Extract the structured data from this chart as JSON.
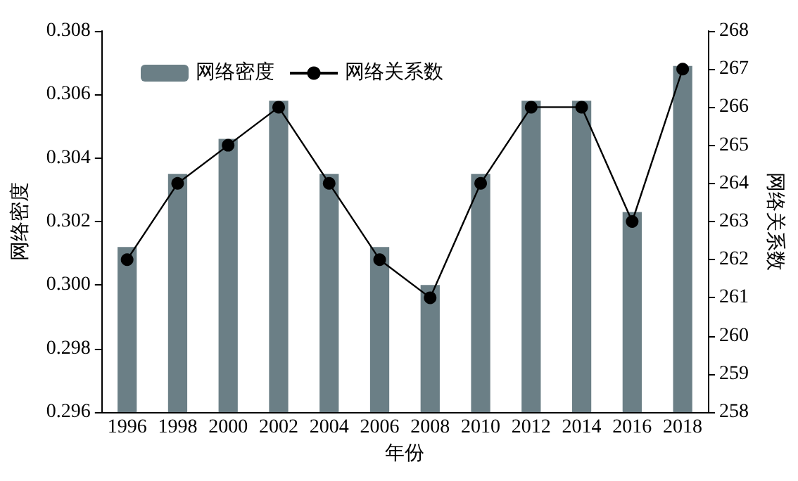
{
  "chart_data": {
    "type": "bar",
    "xlabel": "年份",
    "ylabel": "网络密度",
    "y2label": "网络关系数",
    "categories": [
      "1996",
      "1998",
      "2000",
      "2002",
      "2004",
      "2006",
      "2008",
      "2010",
      "2012",
      "2014",
      "2016",
      "2018"
    ],
    "series": [
      {
        "name": "网络密度",
        "color": "#6b7f86",
        "values": [
          0.3012,
          0.3035,
          0.3046,
          0.3058,
          0.3035,
          0.3012,
          0.3,
          0.3035,
          0.3058,
          0.3058,
          0.3023,
          0.3069
        ]
      },
      {
        "name": "网络关系数",
        "type": "line",
        "axis": "y2",
        "color": "#000000",
        "marker": "circle",
        "line_style": "solid",
        "values": [
          262,
          264,
          265,
          266,
          264,
          262,
          261,
          264,
          266,
          266,
          263,
          267
        ]
      }
    ],
    "ylim": [
      0.296,
      0.308
    ],
    "yticks": [
      0.296,
      0.298,
      {
        "value": 0.3,
        "label": "0.300"
      },
      0.302,
      0.304,
      0.306,
      0.308
    ],
    "y2lim": [
      258,
      268
    ],
    "y2ticks": [
      258,
      259,
      260,
      261,
      262,
      263,
      264,
      265,
      266,
      267,
      268
    ],
    "grid": false,
    "legend": "top left"
  }
}
